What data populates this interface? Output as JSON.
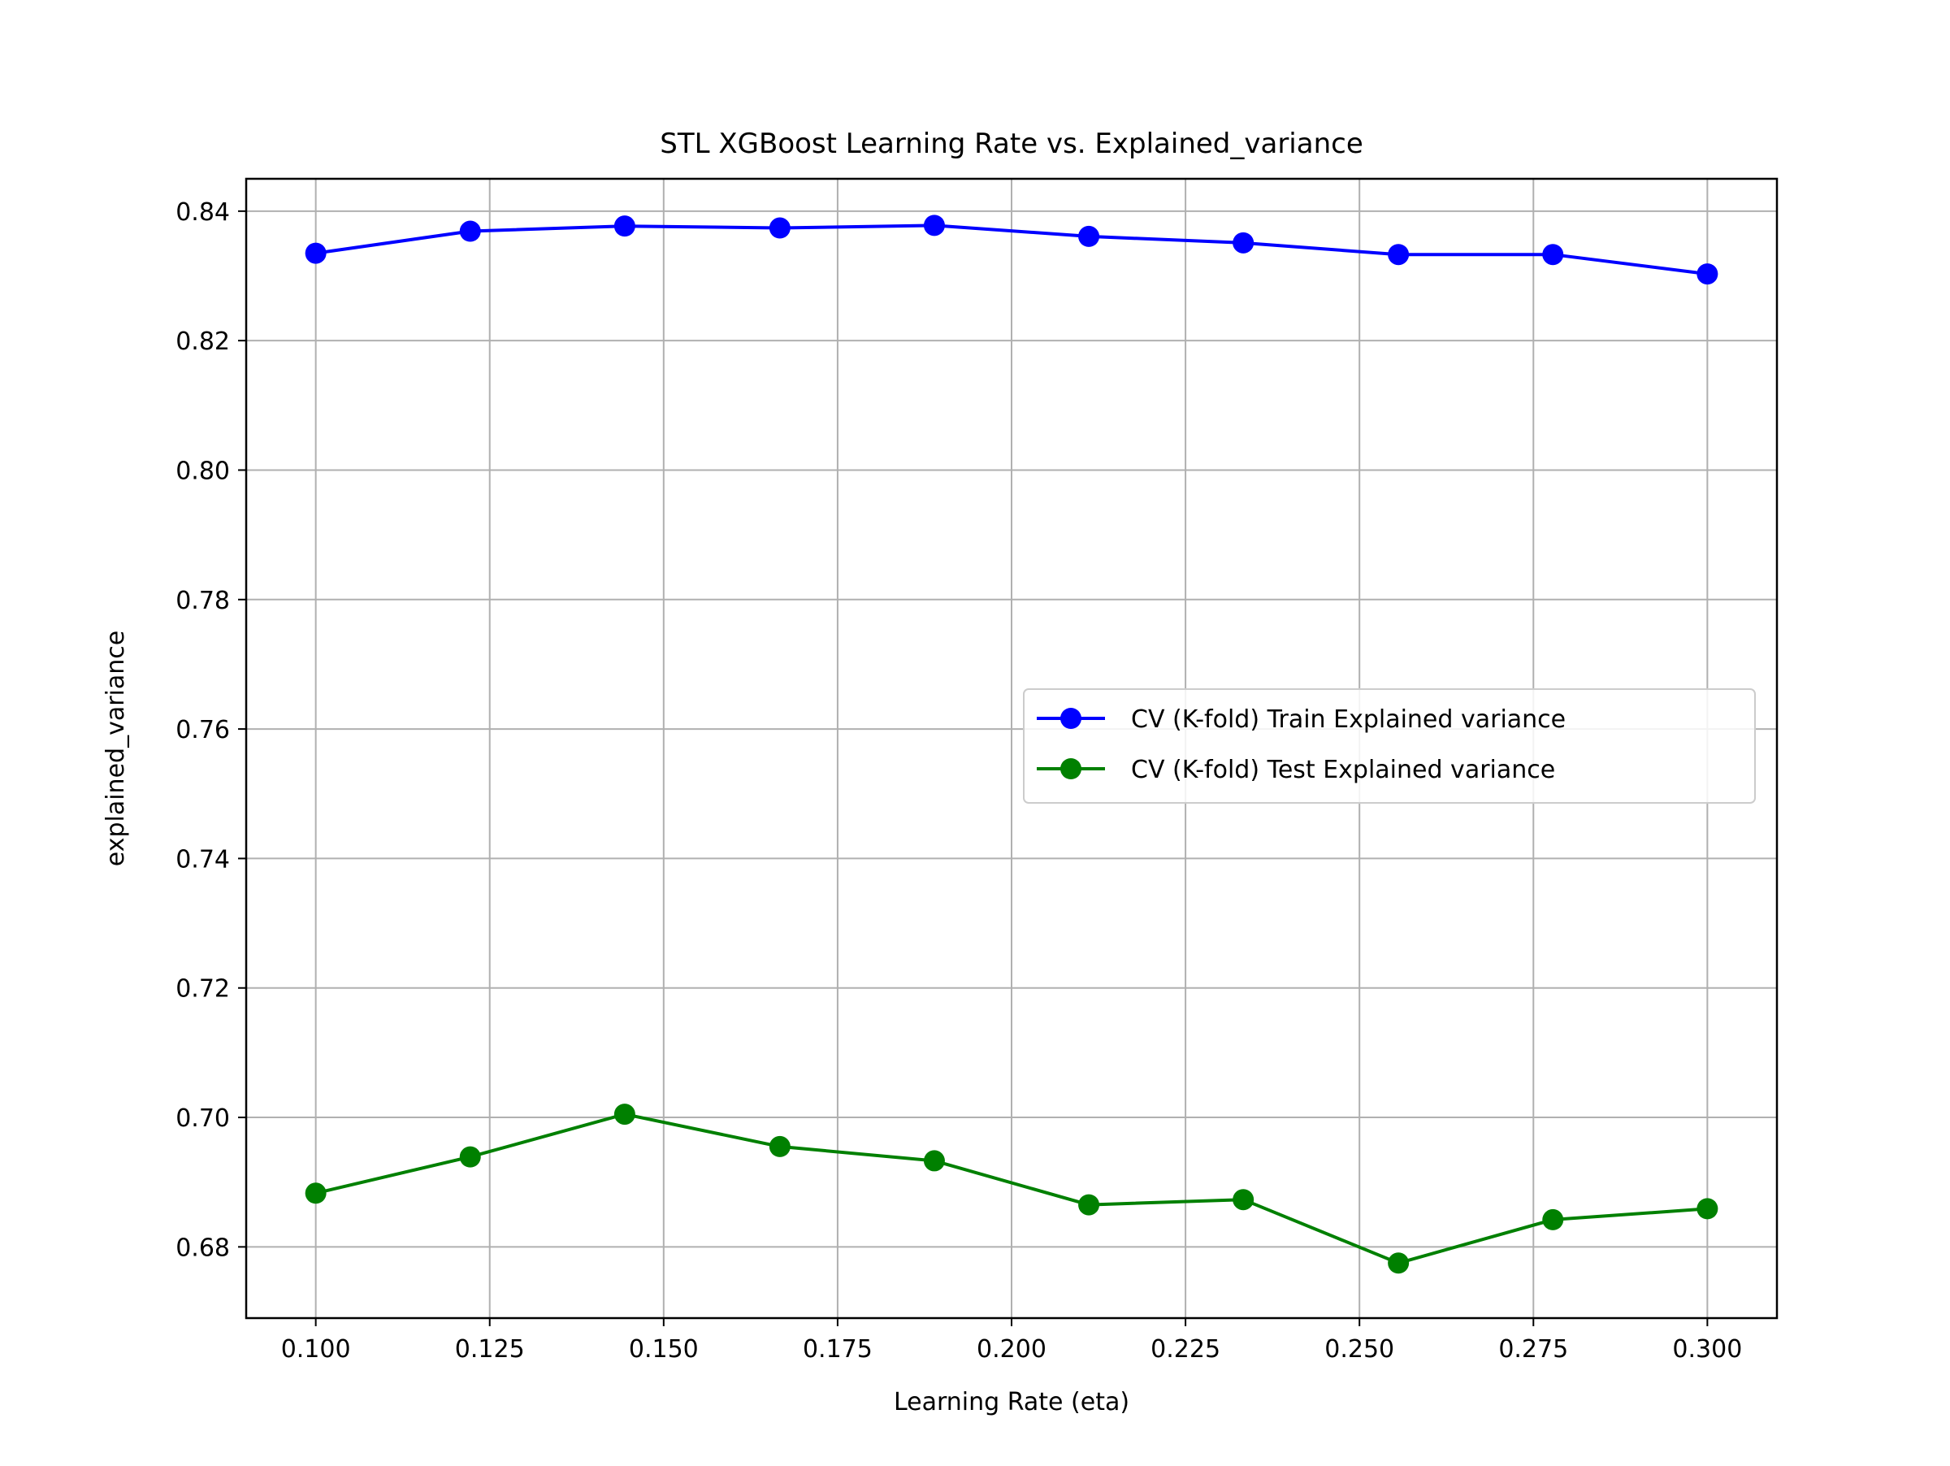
{
  "chart_data": {
    "type": "line",
    "title": "STL XGBoost Learning Rate vs. Explained_variance",
    "xlabel": "Learning Rate (eta)",
    "ylabel": "explained_variance",
    "xlim": [
      0.09,
      0.31
    ],
    "ylim": [
      0.669,
      0.845
    ],
    "xticks": [
      0.1,
      0.125,
      0.15,
      0.175,
      0.2,
      0.225,
      0.25,
      0.275,
      0.3
    ],
    "xtick_labels": [
      "0.100",
      "0.125",
      "0.150",
      "0.175",
      "0.200",
      "0.225",
      "0.250",
      "0.275",
      "0.300"
    ],
    "yticks": [
      0.68,
      0.7,
      0.72,
      0.74,
      0.76,
      0.78,
      0.8,
      0.82,
      0.84
    ],
    "ytick_labels": [
      "0.68",
      "0.70",
      "0.72",
      "0.74",
      "0.76",
      "0.78",
      "0.80",
      "0.82",
      "0.84"
    ],
    "grid": true,
    "legend_position": "center-right",
    "x": [
      0.1,
      0.1222,
      0.1444,
      0.1667,
      0.1889,
      0.2111,
      0.2333,
      0.2556,
      0.2778,
      0.3
    ],
    "series": [
      {
        "name": "CV (K-fold) Train Explained variance",
        "color": "#0000ff",
        "marker": "circle",
        "values": [
          0.8335,
          0.8369,
          0.8377,
          0.8374,
          0.8378,
          0.8361,
          0.8351,
          0.8333,
          0.8333,
          0.8303
        ]
      },
      {
        "name": "CV (K-fold) Test Explained variance",
        "color": "#008000",
        "marker": "circle",
        "values": [
          0.6883,
          0.6939,
          0.7005,
          0.6955,
          0.6933,
          0.6865,
          0.6873,
          0.6775,
          0.6842,
          0.6859
        ]
      }
    ]
  }
}
